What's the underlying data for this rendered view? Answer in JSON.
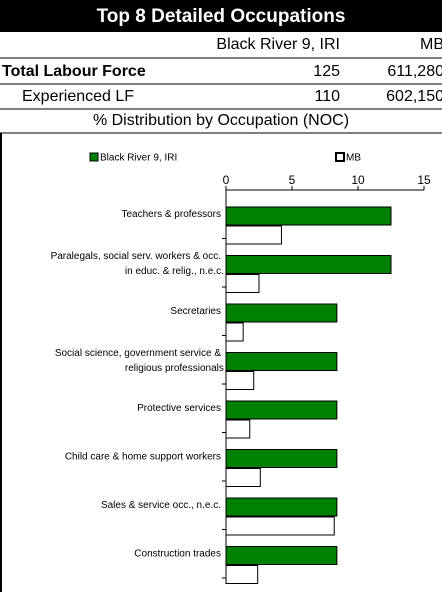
{
  "header": {
    "title": "Top 8 Detailed Occupations",
    "columns": [
      "Black River 9, IRI",
      "MB"
    ],
    "rows": [
      {
        "label": "Total Labour Force",
        "values": [
          "125",
          "611,280"
        ]
      },
      {
        "label": "Experienced LF",
        "values": [
          "110",
          "602,150"
        ]
      }
    ],
    "subtitle": "% Distribution by Occupation (NOC)"
  },
  "chart_data": {
    "type": "hbar",
    "categories": [
      "Teachers & professors",
      "Paralegals, social serv. workers & occ. in educ. & relig., n.e.c.",
      "Secretaries",
      "Social science, government service & religious professionals",
      "Protective services",
      "Child care & home support workers",
      "Sales & service occ., n.e.c.",
      "Construction trades"
    ],
    "series": [
      {
        "name": "Black River 9, IRI",
        "color": "#008000",
        "values": [
          12.5,
          12.5,
          8.4,
          8.4,
          8.4,
          8.4,
          8.4,
          8.4
        ]
      },
      {
        "name": "MB",
        "color": "#ffffff",
        "values": [
          4.2,
          2.5,
          1.3,
          2.1,
          1.8,
          2.6,
          8.2,
          2.4
        ]
      }
    ],
    "xlim": [
      0,
      15
    ],
    "xticks": [
      0,
      5,
      10,
      15
    ],
    "legend": "top"
  }
}
